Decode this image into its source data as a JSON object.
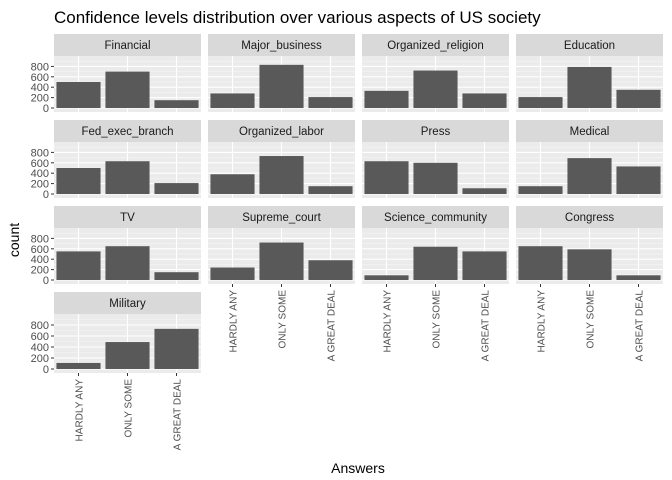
{
  "chart_data": {
    "type": "bar",
    "title": "Confidence levels distribution over various aspects of US society",
    "xlabel": "Answers",
    "ylabel": "count",
    "ylim": [
      0,
      1000
    ],
    "yticks": [
      0,
      200,
      400,
      600,
      800
    ],
    "categories": [
      "HARDLY ANY",
      "ONLY SOME",
      "A GREAT DEAL"
    ],
    "facets": [
      {
        "name": "Financial",
        "values": [
          500,
          700,
          150
        ]
      },
      {
        "name": "Major_business",
        "values": [
          280,
          830,
          210
        ]
      },
      {
        "name": "Organized_religion",
        "values": [
          330,
          720,
          280
        ]
      },
      {
        "name": "Education",
        "values": [
          210,
          790,
          350
        ]
      },
      {
        "name": "Fed_exec_branch",
        "values": [
          500,
          630,
          210
        ]
      },
      {
        "name": "Organized_labor",
        "values": [
          380,
          730,
          150
        ]
      },
      {
        "name": "Press",
        "values": [
          630,
          600,
          110
        ]
      },
      {
        "name": "Medical",
        "values": [
          150,
          690,
          530
        ]
      },
      {
        "name": "TV",
        "values": [
          550,
          650,
          150
        ]
      },
      {
        "name": "Supreme_court",
        "values": [
          240,
          720,
          380
        ]
      },
      {
        "name": "Science_community",
        "values": [
          90,
          640,
          550
        ]
      },
      {
        "name": "Congress",
        "values": [
          650,
          590,
          90
        ]
      },
      {
        "name": "Military",
        "values": [
          110,
          490,
          730
        ]
      }
    ],
    "colors": {
      "bar": "#595959",
      "panel": "#ebebeb",
      "grid_major": "#ffffff",
      "grid_minor": "#f5f5f5",
      "strip": "#d9d9d9",
      "text": "#1a1a1a",
      "tick_text": "#4d4d4d",
      "tick": "#333333"
    },
    "grid": true,
    "legend": "none"
  }
}
